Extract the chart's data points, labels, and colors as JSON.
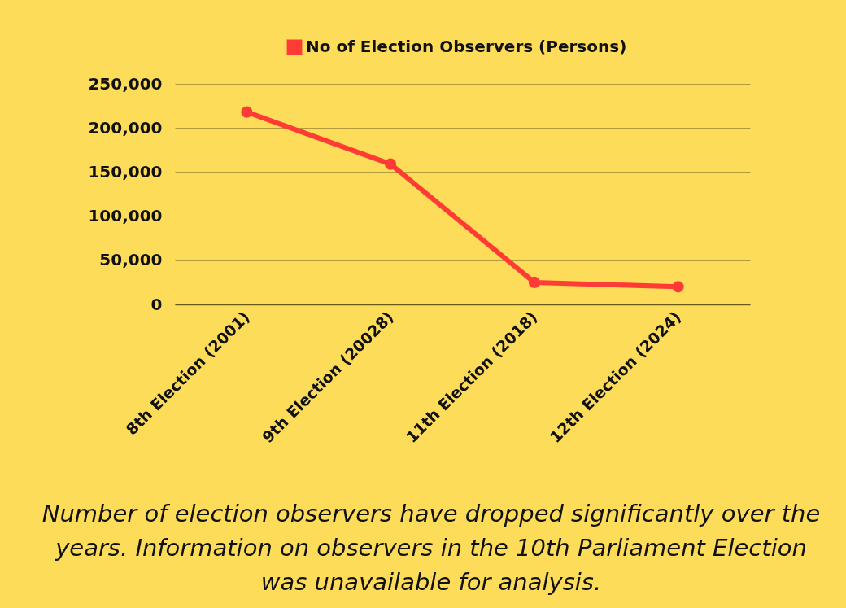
{
  "chart_data": {
    "type": "line",
    "categories": [
      "8th Election (2001)",
      "9th Election (20028)",
      "11th Election (2018)",
      "12th Election (2024)"
    ],
    "series": [
      {
        "name": "No of Election Observers (Persons)",
        "color": "#ff3b36",
        "values": [
          218000,
          159000,
          25000,
          20000
        ]
      }
    ],
    "ylim": [
      0,
      250000
    ],
    "yticks": [
      {
        "value": 0,
        "label": "0"
      },
      {
        "value": 50000,
        "label": "50,000"
      },
      {
        "value": 100000,
        "label": "100,000"
      },
      {
        "value": 150000,
        "label": "150,000"
      },
      {
        "value": 200000,
        "label": "200,000"
      },
      {
        "value": 250000,
        "label": "250,000"
      }
    ],
    "grid": "y",
    "legend": "top",
    "marker": "circle",
    "line_style": "solid",
    "annotations": [
      "Number of election observers have dropped significantly over the years. Information on observers in the 10th Parliament Election was unavailable for analysis."
    ]
  }
}
